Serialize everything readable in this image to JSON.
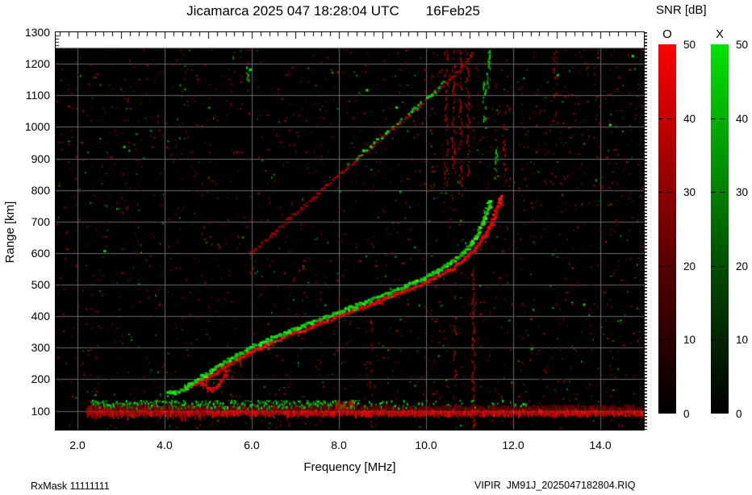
{
  "header": {
    "title": "Jicamarca 2025 047 18:28:04 UTC       16Feb25"
  },
  "colorbar": {
    "title": "SNR [dB]",
    "o_label": "O",
    "x_label": "X",
    "o_color_top": "#ff0000",
    "x_color_top": "#00e400",
    "ticks": [
      "50",
      "40",
      "30",
      "20",
      "10",
      "0"
    ],
    "range_db": [
      0,
      50
    ]
  },
  "footer": {
    "left": "RxMask 11111111",
    "right": "VIPIR  JM91J_2025047182804.RIQ"
  },
  "chart_data": {
    "type": "heatmap",
    "title": "Jicamarca 2025 047 18:28:04 UTC",
    "date_label": "16Feb25",
    "xlabel": "Frequency [MHz]",
    "ylabel": "Range [km]",
    "xlim": [
      1.5,
      15.0
    ],
    "ylim": [
      40,
      1300
    ],
    "x_ticks": [
      2.0,
      4.0,
      6.0,
      8.0,
      10.0,
      12.0,
      14.0
    ],
    "x_tick_labels": [
      "2.0",
      "4.0",
      "6.0",
      "8.0",
      "10.0",
      "12.0",
      "14.0"
    ],
    "y_ticks": [
      100,
      200,
      300,
      400,
      500,
      600,
      700,
      800,
      900,
      1000,
      1100,
      1200,
      1300
    ],
    "y_grid": [
      100,
      200,
      300,
      400,
      500,
      600,
      700,
      800,
      900,
      1000,
      1100,
      1200
    ],
    "grid": true,
    "background": "#000000",
    "grid_color": "#808080",
    "data_top_km": 1250,
    "series": {
      "x_trace": {
        "name": "X-mode main echo",
        "color": "#00dd00",
        "points": [
          [
            4.08,
            160
          ],
          [
            4.22,
            155
          ],
          [
            4.38,
            163
          ],
          [
            4.52,
            177
          ],
          [
            4.72,
            196
          ],
          [
            4.92,
            213
          ],
          [
            5.12,
            230
          ],
          [
            5.32,
            248
          ],
          [
            5.52,
            264
          ],
          [
            5.72,
            280
          ],
          [
            5.95,
            298
          ],
          [
            6.2,
            314
          ],
          [
            6.45,
            328
          ],
          [
            6.7,
            342
          ],
          [
            6.95,
            356
          ],
          [
            7.25,
            372
          ],
          [
            7.55,
            389
          ],
          [
            7.85,
            405
          ],
          [
            8.15,
            420
          ],
          [
            8.45,
            436
          ],
          [
            8.75,
            452
          ],
          [
            9.05,
            468
          ],
          [
            9.35,
            485
          ],
          [
            9.65,
            503
          ],
          [
            9.95,
            521
          ],
          [
            10.25,
            542
          ],
          [
            10.5,
            562
          ],
          [
            10.75,
            588
          ],
          [
            10.95,
            615
          ],
          [
            11.12,
            645
          ],
          [
            11.25,
            678
          ],
          [
            11.35,
            710
          ],
          [
            11.43,
            742
          ],
          [
            11.48,
            768
          ]
        ]
      },
      "o_trace": {
        "name": "O-mode main echo",
        "color": "#ee1100",
        "points": [
          [
            4.5,
            166
          ],
          [
            4.64,
            180
          ],
          [
            4.78,
            192
          ],
          [
            5.0,
            205
          ],
          [
            5.2,
            222
          ],
          [
            5.4,
            240
          ],
          [
            5.6,
            257
          ],
          [
            5.82,
            274
          ],
          [
            6.05,
            291
          ],
          [
            6.3,
            307
          ],
          [
            6.55,
            322
          ],
          [
            6.8,
            336
          ],
          [
            7.05,
            350
          ],
          [
            7.35,
            366
          ],
          [
            7.65,
            382
          ],
          [
            7.95,
            398
          ],
          [
            8.25,
            413
          ],
          [
            8.55,
            428
          ],
          [
            8.85,
            444
          ],
          [
            9.15,
            460
          ],
          [
            9.45,
            476
          ],
          [
            9.75,
            493
          ],
          [
            10.05,
            511
          ],
          [
            10.35,
            531
          ],
          [
            10.6,
            551
          ],
          [
            10.85,
            576
          ],
          [
            11.05,
            601
          ],
          [
            11.22,
            630
          ],
          [
            11.37,
            662
          ],
          [
            11.5,
            696
          ],
          [
            11.6,
            730
          ],
          [
            11.68,
            760
          ],
          [
            11.73,
            788
          ]
        ]
      },
      "o_fork": {
        "name": "O-mode cusp fork",
        "color": "#cc1100",
        "points": [
          [
            4.8,
            193
          ],
          [
            4.95,
            177
          ],
          [
            5.08,
            163
          ],
          [
            5.18,
            172
          ],
          [
            5.28,
            190
          ],
          [
            5.38,
            210
          ],
          [
            5.45,
            228
          ]
        ]
      },
      "oblique_trace": {
        "name": "second reflection / oblique echo",
        "color": "#aa1100",
        "green_patch": [
          8.2,
          10.45
        ],
        "points": [
          [
            5.95,
            596
          ],
          [
            6.4,
            650
          ],
          [
            6.9,
            712
          ],
          [
            7.4,
            773
          ],
          [
            7.9,
            836
          ],
          [
            8.4,
            896
          ],
          [
            8.9,
            955
          ],
          [
            9.4,
            1014
          ],
          [
            9.9,
            1072
          ],
          [
            10.4,
            1132
          ],
          [
            10.8,
            1185
          ],
          [
            11.08,
            1240
          ]
        ]
      }
    },
    "streaks": [
      {
        "f": 10.45,
        "r0": 800,
        "r1": 1245,
        "c": "red",
        "a": 0.5
      },
      {
        "f": 10.62,
        "r0": 860,
        "r1": 1245,
        "c": "red",
        "a": 0.65
      },
      {
        "f": 10.78,
        "r0": 820,
        "r1": 1245,
        "c": "red",
        "a": 0.5
      },
      {
        "f": 10.95,
        "r0": 850,
        "r1": 1245,
        "c": "red",
        "a": 0.6
      },
      {
        "f": 11.08,
        "r0": 45,
        "r1": 560,
        "c": "red",
        "a": 0.8
      },
      {
        "f": 10.65,
        "r0": 45,
        "r1": 620,
        "c": "red",
        "a": 0.3
      },
      {
        "f": 8.72,
        "r0": 45,
        "r1": 400,
        "c": "red",
        "a": 0.28
      },
      {
        "f": 11.42,
        "r0": 1130,
        "r1": 1248,
        "c": "green",
        "a": 0.75
      },
      {
        "f": 11.33,
        "r0": 1000,
        "r1": 1150,
        "c": "green",
        "a": 0.45
      },
      {
        "f": 11.6,
        "r0": 840,
        "r1": 935,
        "c": "green",
        "a": 0.8
      },
      {
        "f": 11.78,
        "r0": 810,
        "r1": 1060,
        "c": "red",
        "a": 0.45
      },
      {
        "f": 12.95,
        "r0": 1050,
        "r1": 1245,
        "c": "red",
        "a": 0.28
      },
      {
        "f": 5.9,
        "r0": 1150,
        "r1": 1210,
        "c": "green",
        "a": 0.5
      }
    ],
    "green_spots": [
      [
        5.95,
        1185
      ],
      [
        13.0,
        1168
      ],
      [
        14.72,
        1228
      ],
      [
        8.62,
        1120
      ],
      [
        9.3,
        1065
      ],
      [
        3.05,
        940
      ],
      [
        2.6,
        610
      ],
      [
        13.6,
        440
      ],
      [
        12.4,
        300
      ],
      [
        14.2,
        1010
      ]
    ],
    "noise_band": {
      "r_center": 100,
      "f_start": 2.2,
      "f_end": 14.95,
      "green_dense": [
        2.3,
        8.45
      ],
      "green_sparse_end": 12.3,
      "thick_red_end": 4.95,
      "bump_f": [
        7.9,
        8.35
      ]
    },
    "speckle": {
      "red_density": 0.045,
      "green_density": 0.012
    }
  }
}
